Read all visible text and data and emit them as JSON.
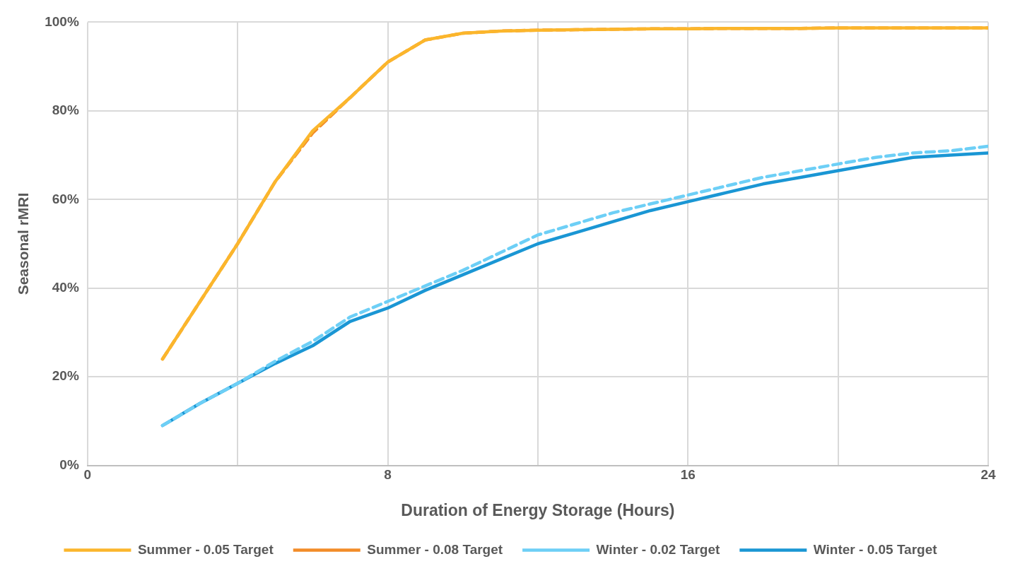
{
  "chart_data": {
    "type": "line",
    "xlabel": "Duration of Energy Storage (Hours)",
    "ylabel": "Seasonal rMRI",
    "x": [
      2,
      3,
      4,
      5,
      6,
      7,
      8,
      9,
      10,
      11,
      12,
      13,
      14,
      15,
      16,
      17,
      18,
      19,
      20,
      21,
      22,
      23,
      24
    ],
    "xlim": [
      0,
      24
    ],
    "xticks": [
      0,
      {
        "value": 4,
        "label": null
      },
      8,
      {
        "value": 12,
        "label": null
      },
      16,
      {
        "value": 20,
        "label": null
      },
      24
    ],
    "ylim": [
      0,
      100
    ],
    "yticks": [
      {
        "value": 0,
        "label": "0%"
      },
      {
        "value": 20,
        "label": "20%"
      },
      {
        "value": 40,
        "label": "40%"
      },
      {
        "value": 60,
        "label": "60%"
      },
      {
        "value": 80,
        "label": "80%"
      },
      {
        "value": 100,
        "label": "100%"
      }
    ],
    "grid": true,
    "legend": "bottom",
    "marker": "none",
    "series": [
      {
        "name": "Summer - 0.05 Target",
        "color": "#fbb62c",
        "line_style": "solid",
        "values": [
          24,
          37,
          50,
          64,
          75.5,
          83,
          91,
          96,
          97.5,
          98,
          98.2,
          98.3,
          98.4,
          98.5,
          98.5,
          98.6,
          98.6,
          98.6,
          98.7,
          98.7,
          98.7,
          98.7,
          98.7
        ]
      },
      {
        "name": "Summer - 0.08 Target",
        "color": "#f28c28",
        "line_style": "dashed",
        "values": [
          24,
          37,
          50,
          64,
          75,
          83,
          91,
          96,
          97.5,
          98,
          98.2,
          98.3,
          98.4,
          98.5,
          98.5,
          98.6,
          98.6,
          98.6,
          98.7,
          98.7,
          98.7,
          98.7,
          98.7
        ]
      },
      {
        "name": "Winter - 0.02 Target",
        "color": "#6dcff6",
        "line_style": "dashed",
        "values": [
          9,
          14,
          18.5,
          23.5,
          28,
          33.5,
          37,
          40.5,
          44,
          48,
          52,
          54.5,
          57,
          59,
          61,
          63,
          65,
          66.5,
          68,
          69.5,
          70.5,
          71,
          72
        ]
      },
      {
        "name": "Winter - 0.05 Target",
        "color": "#1a96d4",
        "line_style": "solid",
        "values": [
          9,
          14,
          18.5,
          23,
          27,
          32.5,
          35.5,
          39.5,
          43,
          46.5,
          50,
          52.5,
          55,
          57.5,
          59.5,
          61.5,
          63.5,
          65,
          66.5,
          68,
          69.5,
          70,
          70.5
        ]
      }
    ]
  }
}
